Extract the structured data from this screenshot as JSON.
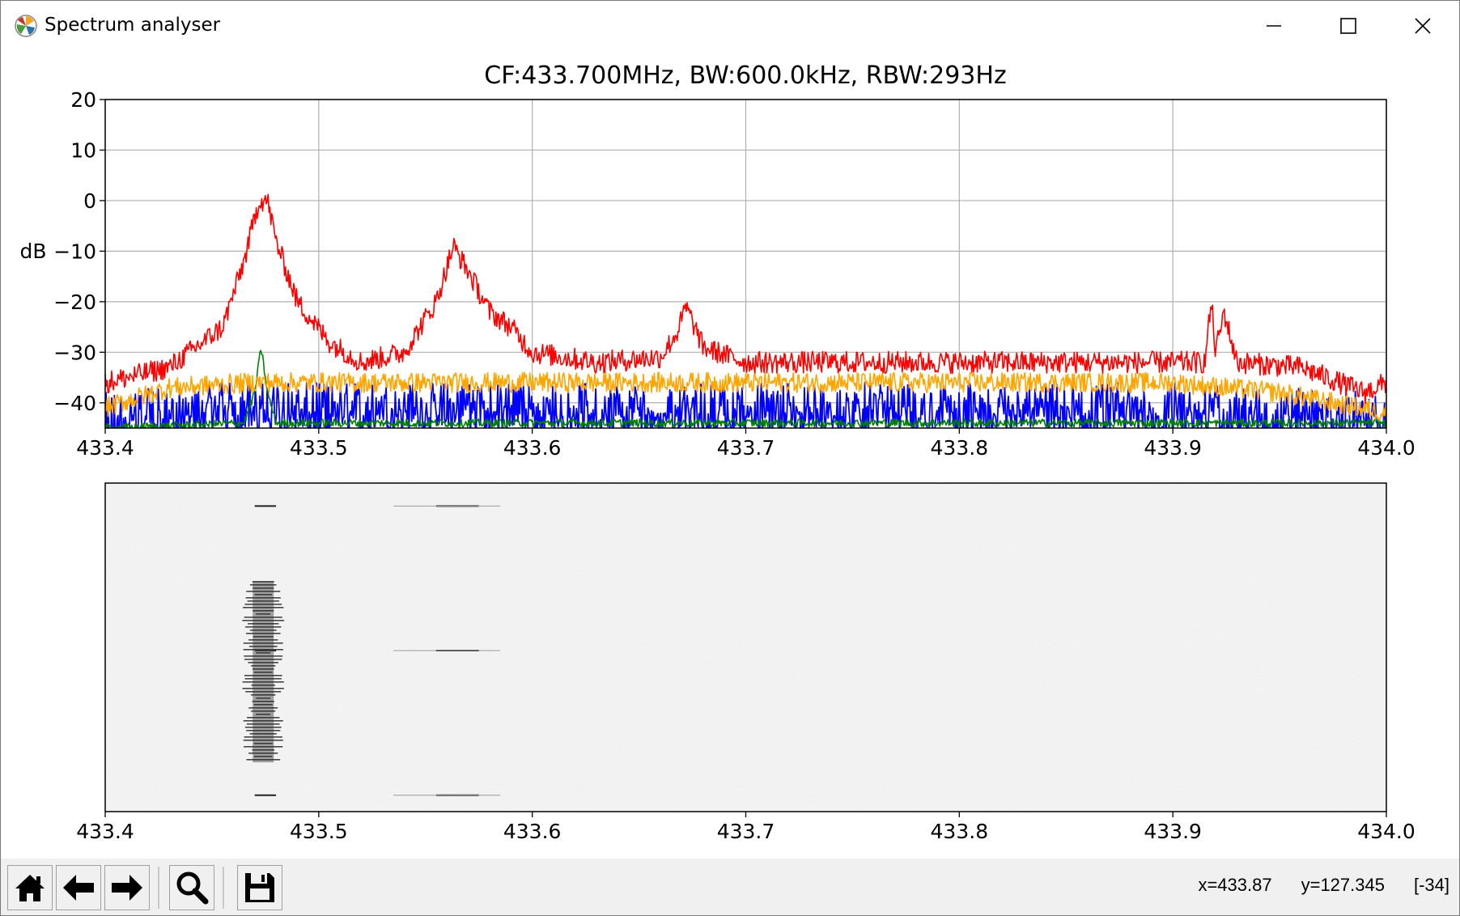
{
  "window": {
    "title": "Spectrum analyser",
    "app_icon": "matplotlib-logo-icon",
    "controls": [
      "minimize-icon",
      "maximize-icon",
      "close-icon"
    ]
  },
  "plot": {
    "title": "CF:433.700MHz, BW:600.0kHz, RBW:293Hz",
    "ylabel": "dB",
    "xticks": [
      "433.4",
      "433.5",
      "433.6",
      "433.7",
      "433.8",
      "433.9",
      "434.0"
    ],
    "yticks": [
      "20",
      "10",
      "0",
      "−10",
      "−20",
      "−30",
      "−40"
    ]
  },
  "chart_data": {
    "type": "line",
    "xlim": [
      433.4,
      434.0
    ],
    "ylim": [
      -45,
      20
    ],
    "grid": true,
    "colors": {
      "peak": "#ff0000",
      "average": "#ffa500",
      "live": "#0000ff",
      "minimum": "#008000"
    },
    "series": [
      {
        "color": "#ff0000",
        "x": [
          433.4,
          433.43,
          433.455,
          433.465,
          433.472,
          433.476,
          433.48,
          433.49,
          433.505,
          433.52,
          433.54,
          433.555,
          433.563,
          433.57,
          433.58,
          433.59,
          433.6,
          433.63,
          433.66,
          433.668,
          433.672,
          433.68,
          433.7,
          433.75,
          433.8,
          433.85,
          433.9,
          433.915,
          433.918,
          433.92,
          433.924,
          433.93,
          433.96,
          433.99,
          434.0
        ],
        "y": [
          -36,
          -33,
          -25,
          -12,
          0,
          0,
          -8,
          -20,
          -28,
          -32,
          -30,
          -20,
          -9,
          -14,
          -22,
          -25,
          -30,
          -32,
          -31,
          -26,
          -21,
          -29,
          -32,
          -32,
          -32,
          -32,
          -32,
          -32,
          -20,
          -30,
          -22,
          -32,
          -33,
          -38,
          -36
        ]
      },
      {
        "color": "#ffa500",
        "x": [
          433.4,
          433.43,
          433.47,
          433.5,
          433.55,
          433.6,
          433.7,
          433.8,
          433.9,
          433.95,
          434.0
        ],
        "y": [
          -41,
          -37,
          -36,
          -36,
          -36,
          -36,
          -36,
          -36,
          -36,
          -38,
          -42
        ]
      },
      {
        "color": "#0000ff",
        "x": [
          433.4,
          433.45,
          433.5,
          433.6,
          433.7,
          433.8,
          433.9,
          433.98,
          434.0
        ],
        "y": [
          -43,
          -41,
          -41,
          -41,
          -41,
          -41,
          -41,
          -42,
          -44
        ]
      },
      {
        "color": "#008000",
        "x": [
          433.4,
          433.465,
          433.47,
          433.473,
          433.476,
          433.48,
          433.6,
          433.7,
          433.8,
          433.9,
          434.0
        ],
        "y": [
          -45,
          -44,
          -38,
          -29,
          -38,
          -44,
          -44,
          -44,
          -44,
          -44,
          -44
        ]
      }
    ]
  },
  "waterfall": {
    "xticks": [
      "433.4",
      "433.5",
      "433.6",
      "433.7",
      "433.8",
      "433.9",
      "434.0"
    ],
    "xlim": [
      433.4,
      434.0
    ],
    "colormap": "greys",
    "burst_freq": 433.474
  },
  "toolbar": {
    "buttons": [
      "home-icon",
      "back-arrow-icon",
      "forward-arrow-icon",
      "zoom-magnifier-icon",
      "save-floppy-icon"
    ],
    "readout": {
      "x": "x=433.87",
      "y": "y=127.345",
      "value": "[-34]"
    }
  }
}
